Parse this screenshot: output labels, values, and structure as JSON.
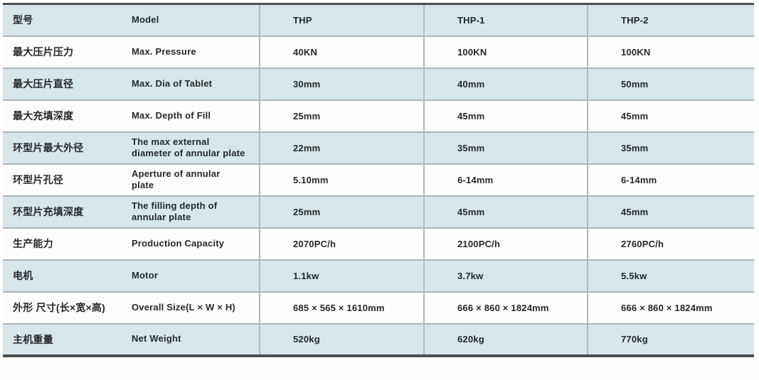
{
  "table": {
    "columns": {
      "label_cn": "型号",
      "label_en": "Model",
      "models": [
        "THP",
        "THP-1",
        "THP-2"
      ]
    },
    "rows": [
      {
        "cn": "型号",
        "en": "Model",
        "values": [
          "THP",
          "THP-1",
          "THP-2"
        ]
      },
      {
        "cn": "最大压片压力",
        "en": "Max. Pressure",
        "values": [
          "40KN",
          "100KN",
          "100KN"
        ]
      },
      {
        "cn": "最大压片直径",
        "en": "Max. Dia of Tablet",
        "values": [
          "30mm",
          "40mm",
          "50mm"
        ]
      },
      {
        "cn": "最大充填深度",
        "en": "Max. Depth of Fill",
        "values": [
          "25mm",
          "45mm",
          "45mm"
        ]
      },
      {
        "cn": "环型片最大外径",
        "en": "The max external\ndiameter of annular plate",
        "values": [
          "22mm",
          "35mm",
          "35mm"
        ]
      },
      {
        "cn": "环型片孔径",
        "en": "Aperture of annular\nplate",
        "values": [
          "5.10mm",
          "6-14mm",
          "6-14mm"
        ]
      },
      {
        "cn": "环型片充填深度",
        "en": "The filling depth of\nannular plate",
        "values": [
          "25mm",
          "45mm",
          "45mm"
        ]
      },
      {
        "cn": "生产能力",
        "en": "Production Capacity",
        "values": [
          "2070PC/h",
          "2100PC/h",
          "2760PC/h"
        ]
      },
      {
        "cn": "电机",
        "en": "Motor",
        "values": [
          "1.1kw",
          "3.7kw",
          "5.5kw"
        ]
      },
      {
        "cn": "外形 尺寸(长×宽×高)",
        "en": "Overall Size(L × W × H)",
        "values": [
          "685 × 565 × 1610mm",
          "666 × 860 × 1824mm",
          "666 × 860 × 1824mm"
        ]
      },
      {
        "cn": "主机重量",
        "en": "Net Weight",
        "values": [
          "520kg",
          "620kg",
          "770kg"
        ]
      }
    ]
  },
  "colors": {
    "row_alt_blue": "#d7e6eb",
    "row_white": "#fdfdfb",
    "border_dark": "#4b4f50",
    "border_light": "#abb4b6",
    "text": "#26282a"
  }
}
